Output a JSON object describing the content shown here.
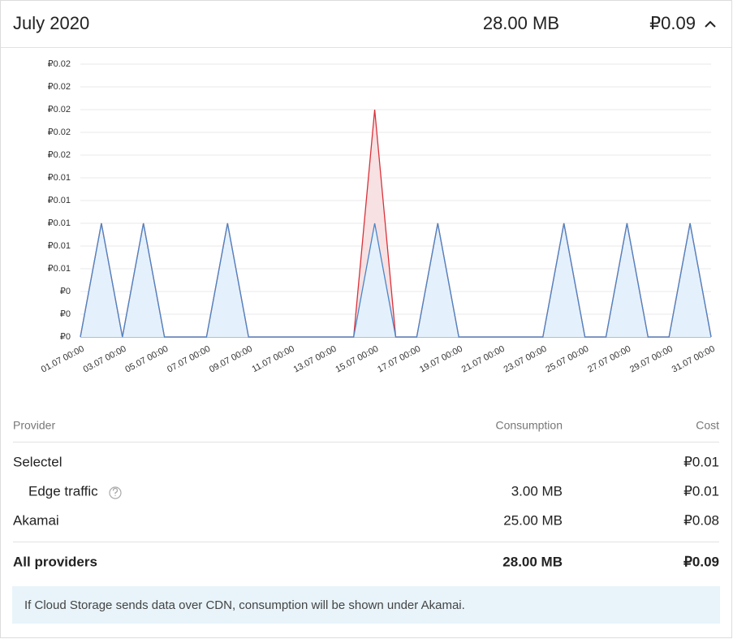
{
  "header": {
    "period": "July 2020",
    "consumption": "28.00 MB",
    "cost": "₽0.09"
  },
  "chart_data": {
    "type": "area",
    "stacked": true,
    "grid": true,
    "categories": [
      "01.07 00:00",
      null,
      "03.07 00:00",
      null,
      "05.07 00:00",
      null,
      "07.07 00:00",
      null,
      "09.07 00:00",
      null,
      "11.07 00:00",
      null,
      "13.07 00:00",
      null,
      "15.07 00:00",
      null,
      "17.07 00:00",
      null,
      "19.07 00:00",
      null,
      "21.07 00:00",
      null,
      "23.07 00:00",
      null,
      "25.07 00:00",
      null,
      "27.07 00:00",
      null,
      "29.07 00:00",
      null,
      "31.07 00:00"
    ],
    "series": [
      {
        "color": "#4a86c8",
        "fill": "#e4f1fc",
        "values": [
          0,
          0.01,
          0,
          0.01,
          0,
          0,
          0,
          0.01,
          0,
          0,
          0,
          0,
          0,
          0,
          0.01,
          0,
          0,
          0.01,
          0,
          0,
          0,
          0,
          0,
          0.01,
          0,
          0,
          0.01,
          0,
          0,
          0.01,
          0
        ]
      },
      {
        "color": "#d9313a",
        "fill": "#f8e1e2",
        "values": [
          0,
          0,
          0,
          0,
          0,
          0,
          0,
          0,
          0,
          0,
          0,
          0,
          0,
          0,
          0.01,
          0,
          0,
          0,
          0,
          0,
          0,
          0,
          0,
          0,
          0,
          0,
          0,
          0,
          0,
          0,
          0
        ]
      }
    ],
    "ylim": [
      0,
      0.024
    ],
    "yticks": [
      {
        "value": 0,
        "label": "₽0"
      },
      {
        "value": 0.002,
        "label": "₽0"
      },
      {
        "value": 0.004,
        "label": "₽0"
      },
      {
        "value": 0.006,
        "label": "₽0.01"
      },
      {
        "value": 0.008,
        "label": "₽0.01"
      },
      {
        "value": 0.01,
        "label": "₽0.01"
      },
      {
        "value": 0.012,
        "label": "₽0.01"
      },
      {
        "value": 0.014,
        "label": "₽0.01"
      },
      {
        "value": 0.016,
        "label": "₽0.02"
      },
      {
        "value": 0.018,
        "label": "₽0.02"
      },
      {
        "value": 0.02,
        "label": "₽0.02"
      },
      {
        "value": 0.022,
        "label": "₽0.02"
      },
      {
        "value": 0.024,
        "label": "₽0.02"
      }
    ]
  },
  "table": {
    "columns": [
      "Provider",
      "Consumption",
      "Cost"
    ],
    "rows": [
      {
        "provider": "Selectel",
        "cost": "₽0.01"
      },
      {
        "provider": "Edge traffic",
        "consumption": "3.00 MB",
        "cost": "₽0.01",
        "level": 1
      },
      {
        "provider": "Akamai",
        "consumption": "25.00 MB",
        "cost": "₽0.08"
      }
    ],
    "total": {
      "provider": "All providers",
      "consumption": "28.00 MB",
      "cost": "₽0.09"
    }
  },
  "note": "If Cloud Storage sends data over CDN, consumption will be shown under Akamai."
}
